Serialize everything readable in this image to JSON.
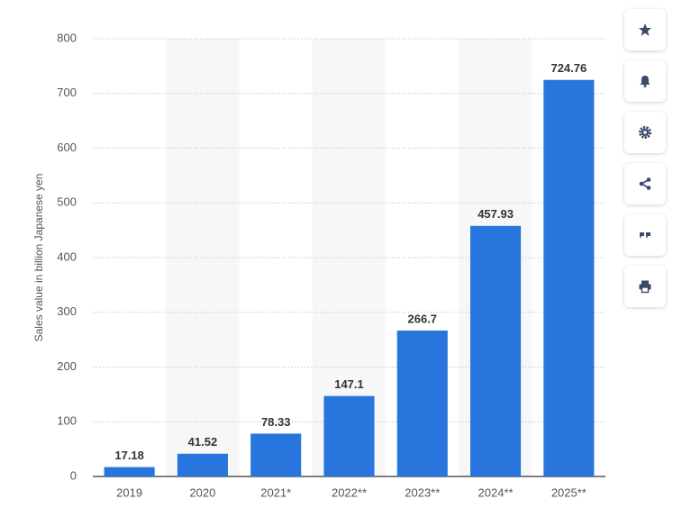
{
  "chart_data": {
    "type": "bar",
    "y_label": "Sales value in billion Japanese yen",
    "categories": [
      "2019",
      "2020",
      "2021*",
      "2022**",
      "2023**",
      "2024**",
      "2025**"
    ],
    "values": [
      17.18,
      41.52,
      78.33,
      147.1,
      266.7,
      457.93,
      724.76
    ],
    "color": "#2876dd",
    "ylim": [
      0,
      800
    ],
    "yticks": [
      0,
      100,
      200,
      300,
      400,
      500,
      600,
      700,
      800
    ],
    "grid": true
  }
}
